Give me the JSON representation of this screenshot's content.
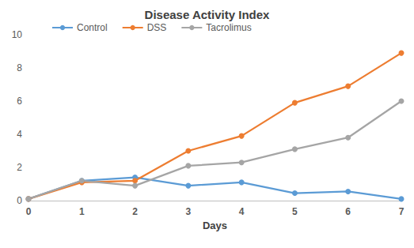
{
  "chart_data": {
    "type": "line",
    "title": "Disease Activity Index",
    "x_label": "Days",
    "x": [
      0,
      1,
      2,
      3,
      4,
      5,
      6,
      7
    ],
    "xlim": [
      0,
      7
    ],
    "xticks": [
      0,
      1,
      2,
      3,
      4,
      5,
      6,
      7
    ],
    "ylim": [
      0,
      10
    ],
    "yticks": [
      0,
      2,
      4,
      6,
      8,
      10
    ],
    "grid": false,
    "legend": "top",
    "marker": "circle",
    "series": [
      {
        "name": "Control",
        "color": "#5B9BD5",
        "values": [
          0.1,
          1.2,
          1.4,
          0.9,
          1.1,
          0.45,
          0.55,
          0.1
        ]
      },
      {
        "name": "DSS",
        "color": "#ED7D31",
        "values": [
          0.1,
          1.1,
          1.2,
          3.0,
          3.9,
          5.9,
          6.9,
          8.9
        ]
      },
      {
        "name": "Tacrolimus",
        "color": "#A5A5A5",
        "values": [
          0.1,
          1.2,
          0.9,
          2.1,
          2.3,
          3.1,
          3.8,
          6.0
        ]
      }
    ]
  }
}
